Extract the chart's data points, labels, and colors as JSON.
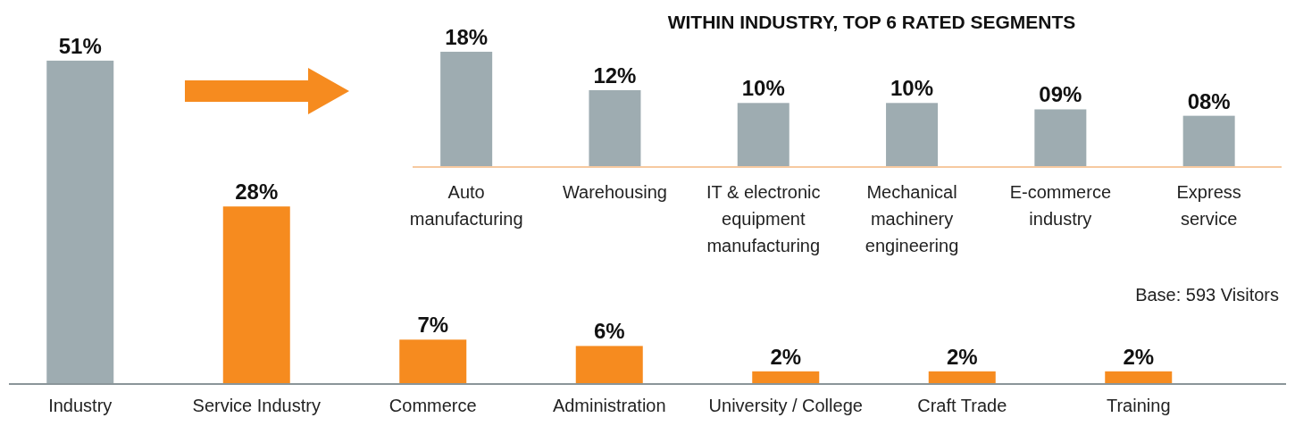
{
  "chart_data": [
    {
      "type": "bar",
      "categories": [
        "Industry",
        "Service Industry",
        "Commerce",
        "Administration",
        "University / College",
        "Craft Trade",
        "Training"
      ],
      "values": [
        51,
        28,
        7,
        6,
        2,
        2,
        2
      ],
      "colors": [
        "#9eacb1",
        "#f68b1f",
        "#f68b1f",
        "#f68b1f",
        "#f68b1f",
        "#f68b1f",
        "#f68b1f"
      ],
      "value_labels": [
        "51%",
        "28%",
        "7%",
        "6%",
        "2%",
        "2%",
        "2%"
      ],
      "annotations": [
        "Base: 593 Visitors"
      ]
    },
    {
      "type": "bar",
      "title": "WITHIN INDUSTRY, TOP 6 RATED SEGMENTS",
      "categories": [
        "Auto manufacturing",
        "Warehousing",
        "IT & electronic equipment manufacturing",
        "Mechanical machinery engineering",
        "E-commerce industry",
        "Express service"
      ],
      "values": [
        18,
        12,
        10,
        10,
        9,
        8
      ],
      "colors": [
        "#9eacb1",
        "#9eacb1",
        "#9eacb1",
        "#9eacb1",
        "#9eacb1",
        "#9eacb1"
      ],
      "value_labels": [
        "18%",
        "12%",
        "10%",
        "10%",
        "09%",
        "08%"
      ]
    }
  ]
}
